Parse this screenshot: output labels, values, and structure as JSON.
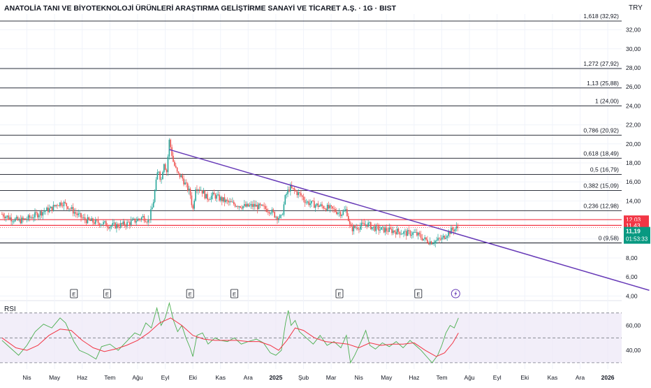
{
  "header": {
    "title": "ANATOLİA TANI VE BİYOTEKNOLOJİ ÜRÜNLERİ ARAŞTIRMA GELİŞTİRME SANAYİ VE TİCARET A.Ş. · 1G · BIST",
    "currency": "TRY"
  },
  "rsi_label": "RSI",
  "colors": {
    "up": "#26a69a",
    "down": "#ef5350",
    "trendline": "#673ab7",
    "fib_line": "#131722",
    "resistance": "#f23645",
    "rsi_line": "#4caf50",
    "rsi_ma": "#f23645",
    "rsi_band": "#ede7f6",
    "price_tag": "#089981",
    "grid": "#f0f3fa",
    "axis_text": "#131722"
  },
  "chart_data": [
    {
      "type": "candlestick",
      "y_ticks": [
        "32,00",
        "30,00",
        "28,00",
        "26,00",
        "24,00",
        "22,00",
        "20,00",
        "18,00",
        "16,00",
        "14,00",
        "12,00",
        "10,00",
        "8,00",
        "6,00",
        "4,00"
      ],
      "y_tick_values": [
        32,
        30,
        28,
        26,
        24,
        22,
        20,
        18,
        16,
        14,
        12,
        10,
        8,
        6,
        4
      ],
      "ylim": [
        4,
        33
      ],
      "x_ticks": [
        "Nis",
        "May",
        "Haz",
        "Tem",
        "Ağu",
        "Eyl",
        "Eki",
        "Kas",
        "Ara",
        "2025",
        "Şub",
        "Mar",
        "Nis",
        "May",
        "Haz",
        "Tem",
        "Ağu",
        "Eyl",
        "Eki",
        "Kas",
        "Ara",
        "2026"
      ],
      "x_tick_months": [
        0,
        1,
        2,
        3,
        4,
        5,
        6,
        7,
        8,
        9,
        10,
        11,
        12,
        13,
        14,
        15,
        16,
        17,
        18,
        19,
        20,
        21
      ],
      "fib_levels": [
        {
          "label": "1,618 (32,92)",
          "value": 32.92
        },
        {
          "label": "1,272 (27,92)",
          "value": 27.92
        },
        {
          "label": "1,13 (25,88)",
          "value": 25.88
        },
        {
          "label": "1 (24,00)",
          "value": 24.0
        },
        {
          "label": "0,786 (20,92)",
          "value": 20.92
        },
        {
          "label": "0,618 (18,49)",
          "value": 18.49
        },
        {
          "label": "0,5 (16,79)",
          "value": 16.79
        },
        {
          "label": "0,382 (15,09)",
          "value": 15.09
        },
        {
          "label": "0,236 (12,98)",
          "value": 12.98
        },
        {
          "label": "0 (9,58)",
          "value": 9.58
        }
      ],
      "resistance_levels": [
        {
          "label": "12,03",
          "value": 12.03
        },
        {
          "label": "11,43",
          "value": 11.43
        }
      ],
      "last_price": {
        "label": "11,19",
        "countdown": "01:53:33",
        "value": 11.19
      },
      "trendline": {
        "start": {
          "month": 5.15,
          "value": 19.4
        },
        "end": {
          "month": 22.5,
          "value": 4.6
        }
      },
      "earnings_markers": {
        "label": "E",
        "months": [
          1.7,
          2.9,
          5.9,
          7.5,
          11.3,
          14.15
        ]
      },
      "dividend_marker": {
        "month": 15.5
      },
      "price_path": [
        {
          "m": -0.9,
          "v": 12.6
        },
        {
          "m": -0.6,
          "v": 12.2
        },
        {
          "m": -0.3,
          "v": 11.9
        },
        {
          "m": 0.0,
          "v": 12.1
        },
        {
          "m": 0.3,
          "v": 12.5
        },
        {
          "m": 0.6,
          "v": 12.9
        },
        {
          "m": 0.9,
          "v": 13.2
        },
        {
          "m": 1.1,
          "v": 13.7
        },
        {
          "m": 1.3,
          "v": 13.8
        },
        {
          "m": 1.5,
          "v": 13.4
        },
        {
          "m": 1.8,
          "v": 12.6
        },
        {
          "m": 2.1,
          "v": 12.0
        },
        {
          "m": 2.4,
          "v": 11.8
        },
        {
          "m": 2.8,
          "v": 11.6
        },
        {
          "m": 3.0,
          "v": 11.4
        },
        {
          "m": 3.3,
          "v": 11.4
        },
        {
          "m": 3.6,
          "v": 11.6
        },
        {
          "m": 3.9,
          "v": 11.9
        },
        {
          "m": 4.2,
          "v": 12.3
        },
        {
          "m": 4.4,
          "v": 11.9
        },
        {
          "m": 4.55,
          "v": 13.5
        },
        {
          "m": 4.65,
          "v": 15.5
        },
        {
          "m": 4.75,
          "v": 17.5
        },
        {
          "m": 4.85,
          "v": 16.0
        },
        {
          "m": 4.95,
          "v": 18.2
        },
        {
          "m": 5.05,
          "v": 17.0
        },
        {
          "m": 5.15,
          "v": 20.4
        },
        {
          "m": 5.3,
          "v": 18.0
        },
        {
          "m": 5.45,
          "v": 16.8
        },
        {
          "m": 5.6,
          "v": 16.5
        },
        {
          "m": 5.75,
          "v": 15.6
        },
        {
          "m": 5.9,
          "v": 14.8
        },
        {
          "m": 6.0,
          "v": 13.0
        },
        {
          "m": 6.1,
          "v": 15.5
        },
        {
          "m": 6.3,
          "v": 15.2
        },
        {
          "m": 6.5,
          "v": 14.3
        },
        {
          "m": 6.75,
          "v": 14.6
        },
        {
          "m": 7.0,
          "v": 14.2
        },
        {
          "m": 7.3,
          "v": 13.8
        },
        {
          "m": 7.6,
          "v": 13.6
        },
        {
          "m": 7.9,
          "v": 13.4
        },
        {
          "m": 8.2,
          "v": 13.5
        },
        {
          "m": 8.5,
          "v": 13.3
        },
        {
          "m": 8.8,
          "v": 13.0
        },
        {
          "m": 9.0,
          "v": 12.4
        },
        {
          "m": 9.2,
          "v": 12.2
        },
        {
          "m": 9.35,
          "v": 14.5
        },
        {
          "m": 9.5,
          "v": 15.4
        },
        {
          "m": 9.7,
          "v": 15.0
        },
        {
          "m": 9.9,
          "v": 14.6
        },
        {
          "m": 10.1,
          "v": 13.9
        },
        {
          "m": 10.4,
          "v": 13.6
        },
        {
          "m": 10.7,
          "v": 13.4
        },
        {
          "m": 10.95,
          "v": 13.2
        },
        {
          "m": 11.2,
          "v": 12.9
        },
        {
          "m": 11.4,
          "v": 12.7
        },
        {
          "m": 11.55,
          "v": 13.1
        },
        {
          "m": 11.7,
          "v": 11.0
        },
        {
          "m": 11.85,
          "v": 11.2
        },
        {
          "m": 12.1,
          "v": 11.4
        },
        {
          "m": 12.3,
          "v": 11.6
        },
        {
          "m": 12.5,
          "v": 11.2
        },
        {
          "m": 12.8,
          "v": 11.0
        },
        {
          "m": 13.1,
          "v": 10.9
        },
        {
          "m": 13.4,
          "v": 10.8
        },
        {
          "m": 13.7,
          "v": 10.6
        },
        {
          "m": 14.0,
          "v": 10.6
        },
        {
          "m": 14.2,
          "v": 10.3
        },
        {
          "m": 14.4,
          "v": 9.9
        },
        {
          "m": 14.6,
          "v": 9.7
        },
        {
          "m": 14.8,
          "v": 9.8
        },
        {
          "m": 15.0,
          "v": 10.0
        },
        {
          "m": 15.2,
          "v": 10.6
        },
        {
          "m": 15.4,
          "v": 11.0
        },
        {
          "m": 15.6,
          "v": 11.2
        }
      ]
    },
    {
      "type": "line",
      "title": "RSI",
      "y_ticks": [
        "60,00",
        "40,00"
      ],
      "y_tick_values": [
        60,
        40
      ],
      "ylim": [
        25,
        80
      ],
      "bands": [
        70,
        50,
        30
      ],
      "series": [
        {
          "values": [
            {
              "m": -0.9,
              "v": 48
            },
            {
              "m": -0.6,
              "v": 42
            },
            {
              "m": -0.3,
              "v": 36
            },
            {
              "m": 0.0,
              "v": 44
            },
            {
              "m": 0.3,
              "v": 55
            },
            {
              "m": 0.6,
              "v": 61
            },
            {
              "m": 0.9,
              "v": 58
            },
            {
              "m": 1.2,
              "v": 66
            },
            {
              "m": 1.4,
              "v": 62
            },
            {
              "m": 1.7,
              "v": 47
            },
            {
              "m": 1.9,
              "v": 40
            },
            {
              "m": 2.2,
              "v": 37
            },
            {
              "m": 2.5,
              "v": 33
            },
            {
              "m": 2.7,
              "v": 43
            },
            {
              "m": 3.0,
              "v": 45
            },
            {
              "m": 3.3,
              "v": 40
            },
            {
              "m": 3.6,
              "v": 47
            },
            {
              "m": 3.9,
              "v": 54
            },
            {
              "m": 4.1,
              "v": 52
            },
            {
              "m": 4.3,
              "v": 62
            },
            {
              "m": 4.5,
              "v": 58
            },
            {
              "m": 4.7,
              "v": 74
            },
            {
              "m": 4.85,
              "v": 60
            },
            {
              "m": 5.0,
              "v": 66
            },
            {
              "m": 5.15,
              "v": 78
            },
            {
              "m": 5.3,
              "v": 64
            },
            {
              "m": 5.45,
              "v": 55
            },
            {
              "m": 5.6,
              "v": 60
            },
            {
              "m": 5.75,
              "v": 50
            },
            {
              "m": 5.9,
              "v": 42
            },
            {
              "m": 6.0,
              "v": 35
            },
            {
              "m": 6.15,
              "v": 52
            },
            {
              "m": 6.35,
              "v": 54
            },
            {
              "m": 6.55,
              "v": 45
            },
            {
              "m": 6.8,
              "v": 50
            },
            {
              "m": 7.0,
              "v": 48
            },
            {
              "m": 7.25,
              "v": 47
            },
            {
              "m": 7.5,
              "v": 50
            },
            {
              "m": 7.75,
              "v": 45
            },
            {
              "m": 8.0,
              "v": 47
            },
            {
              "m": 8.3,
              "v": 49
            },
            {
              "m": 8.55,
              "v": 46
            },
            {
              "m": 8.8,
              "v": 38
            },
            {
              "m": 9.0,
              "v": 36
            },
            {
              "m": 9.2,
              "v": 40
            },
            {
              "m": 9.35,
              "v": 62
            },
            {
              "m": 9.45,
              "v": 72
            },
            {
              "m": 9.55,
              "v": 60
            },
            {
              "m": 9.7,
              "v": 64
            },
            {
              "m": 9.85,
              "v": 55
            },
            {
              "m": 10.1,
              "v": 50
            },
            {
              "m": 10.35,
              "v": 45
            },
            {
              "m": 10.6,
              "v": 52
            },
            {
              "m": 10.85,
              "v": 44
            },
            {
              "m": 11.1,
              "v": 47
            },
            {
              "m": 11.35,
              "v": 42
            },
            {
              "m": 11.55,
              "v": 52
            },
            {
              "m": 11.7,
              "v": 30
            },
            {
              "m": 11.85,
              "v": 36
            },
            {
              "m": 12.1,
              "v": 48
            },
            {
              "m": 12.25,
              "v": 56
            },
            {
              "m": 12.4,
              "v": 44
            },
            {
              "m": 12.6,
              "v": 41
            },
            {
              "m": 12.85,
              "v": 46
            },
            {
              "m": 13.1,
              "v": 43
            },
            {
              "m": 13.35,
              "v": 47
            },
            {
              "m": 13.6,
              "v": 42
            },
            {
              "m": 13.85,
              "v": 48
            },
            {
              "m": 14.05,
              "v": 44
            },
            {
              "m": 14.25,
              "v": 40
            },
            {
              "m": 14.45,
              "v": 35
            },
            {
              "m": 14.65,
              "v": 30
            },
            {
              "m": 14.85,
              "v": 36
            },
            {
              "m": 15.0,
              "v": 44
            },
            {
              "m": 15.15,
              "v": 54
            },
            {
              "m": 15.3,
              "v": 60
            },
            {
              "m": 15.45,
              "v": 58
            },
            {
              "m": 15.6,
              "v": 66
            }
          ]
        },
        {
          "values": [
            {
              "m": -0.9,
              "v": 50
            },
            {
              "m": -0.4,
              "v": 42
            },
            {
              "m": 0.0,
              "v": 40
            },
            {
              "m": 0.4,
              "v": 44
            },
            {
              "m": 0.8,
              "v": 52
            },
            {
              "m": 1.2,
              "v": 57
            },
            {
              "m": 1.6,
              "v": 56
            },
            {
              "m": 2.0,
              "v": 48
            },
            {
              "m": 2.4,
              "v": 42
            },
            {
              "m": 2.8,
              "v": 39
            },
            {
              "m": 3.2,
              "v": 41
            },
            {
              "m": 3.6,
              "v": 44
            },
            {
              "m": 4.0,
              "v": 48
            },
            {
              "m": 4.4,
              "v": 54
            },
            {
              "m": 4.8,
              "v": 62
            },
            {
              "m": 5.2,
              "v": 66
            },
            {
              "m": 5.6,
              "v": 60
            },
            {
              "m": 6.0,
              "v": 52
            },
            {
              "m": 6.4,
              "v": 49
            },
            {
              "m": 6.8,
              "v": 48
            },
            {
              "m": 7.2,
              "v": 48
            },
            {
              "m": 7.6,
              "v": 48
            },
            {
              "m": 8.0,
              "v": 47
            },
            {
              "m": 8.4,
              "v": 47
            },
            {
              "m": 8.8,
              "v": 44
            },
            {
              "m": 9.1,
              "v": 40
            },
            {
              "m": 9.4,
              "v": 48
            },
            {
              "m": 9.7,
              "v": 58
            },
            {
              "m": 10.0,
              "v": 56
            },
            {
              "m": 10.4,
              "v": 50
            },
            {
              "m": 10.8,
              "v": 47
            },
            {
              "m": 11.2,
              "v": 46
            },
            {
              "m": 11.6,
              "v": 45
            },
            {
              "m": 12.0,
              "v": 42
            },
            {
              "m": 12.4,
              "v": 46
            },
            {
              "m": 12.8,
              "v": 44
            },
            {
              "m": 13.2,
              "v": 45
            },
            {
              "m": 13.6,
              "v": 45
            },
            {
              "m": 14.0,
              "v": 46
            },
            {
              "m": 14.4,
              "v": 40
            },
            {
              "m": 14.8,
              "v": 35
            },
            {
              "m": 15.1,
              "v": 38
            },
            {
              "m": 15.4,
              "v": 46
            },
            {
              "m": 15.6,
              "v": 54
            }
          ]
        }
      ]
    }
  ]
}
